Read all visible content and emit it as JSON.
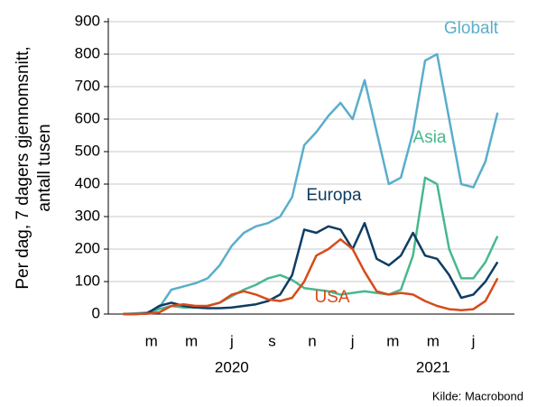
{
  "chart_data": {
    "type": "line",
    "y_axis_label": [
      "Per dag, 7 dagers gjennomsnitt,",
      "antall tusen"
    ],
    "source": "Kilde: Macrobond",
    "x": [
      2020.05,
      2020.1,
      2020.15,
      2020.2,
      2020.25,
      2020.3,
      2020.35,
      2020.4,
      2020.45,
      2020.5,
      2020.55,
      2020.6,
      2020.65,
      2020.7,
      2020.75,
      2020.8,
      2020.85,
      2020.9,
      2020.95,
      2021.0,
      2021.05,
      2021.1,
      2021.15,
      2021.2,
      2021.25,
      2021.3,
      2021.35,
      2021.4,
      2021.45,
      2021.5,
      2021.55,
      2021.6
    ],
    "series": [
      {
        "name": "Globalt",
        "color": "#5aaecb",
        "values": [
          0,
          2,
          5,
          20,
          75,
          85,
          95,
          110,
          150,
          210,
          250,
          270,
          280,
          300,
          360,
          520,
          560,
          610,
          650,
          600,
          720,
          560,
          400,
          420,
          560,
          780,
          800,
          600,
          400,
          390,
          470,
          620
        ]
      },
      {
        "name": "Asia",
        "color": "#48b88e",
        "values": [
          0,
          0,
          2,
          15,
          25,
          20,
          20,
          25,
          35,
          55,
          75,
          90,
          110,
          120,
          105,
          80,
          75,
          70,
          60,
          65,
          70,
          65,
          60,
          75,
          180,
          420,
          400,
          200,
          110,
          110,
          160,
          240
        ]
      },
      {
        "name": "Europa",
        "color": "#0e3d63",
        "values": [
          0,
          0,
          2,
          25,
          35,
          25,
          20,
          18,
          18,
          20,
          25,
          30,
          40,
          60,
          120,
          260,
          250,
          270,
          260,
          200,
          280,
          170,
          150,
          180,
          250,
          180,
          170,
          120,
          50,
          60,
          100,
          160
        ]
      },
      {
        "name": "USA",
        "color": "#d84a1a",
        "values": [
          0,
          0,
          1,
          5,
          25,
          30,
          25,
          25,
          35,
          60,
          70,
          60,
          45,
          40,
          50,
          100,
          180,
          200,
          230,
          200,
          130,
          70,
          60,
          65,
          60,
          40,
          25,
          15,
          12,
          15,
          40,
          110
        ]
      }
    ],
    "xlim": [
      2020,
      2021.67
    ],
    "xticks": [
      {
        "value": 2020.167,
        "label": "m"
      },
      {
        "value": 2020.333,
        "label": "m"
      },
      {
        "value": 2020.5,
        "label": "j"
      },
      {
        "value": 2020.667,
        "label": "s"
      },
      {
        "value": 2020.833,
        "label": "n"
      },
      {
        "value": 2021.0,
        "label": "j"
      },
      {
        "value": 2021.167,
        "label": "m"
      },
      {
        "value": 2021.333,
        "label": "m"
      },
      {
        "value": 2021.5,
        "label": "j"
      }
    ],
    "year_labels": [
      {
        "value": 2020.5,
        "label": "2020"
      },
      {
        "value": 2021.333,
        "label": "2021"
      }
    ],
    "ylim": [
      0,
      900
    ],
    "yticks": [
      0,
      100,
      200,
      300,
      400,
      500,
      600,
      700,
      800,
      900
    ],
    "grid": true
  }
}
